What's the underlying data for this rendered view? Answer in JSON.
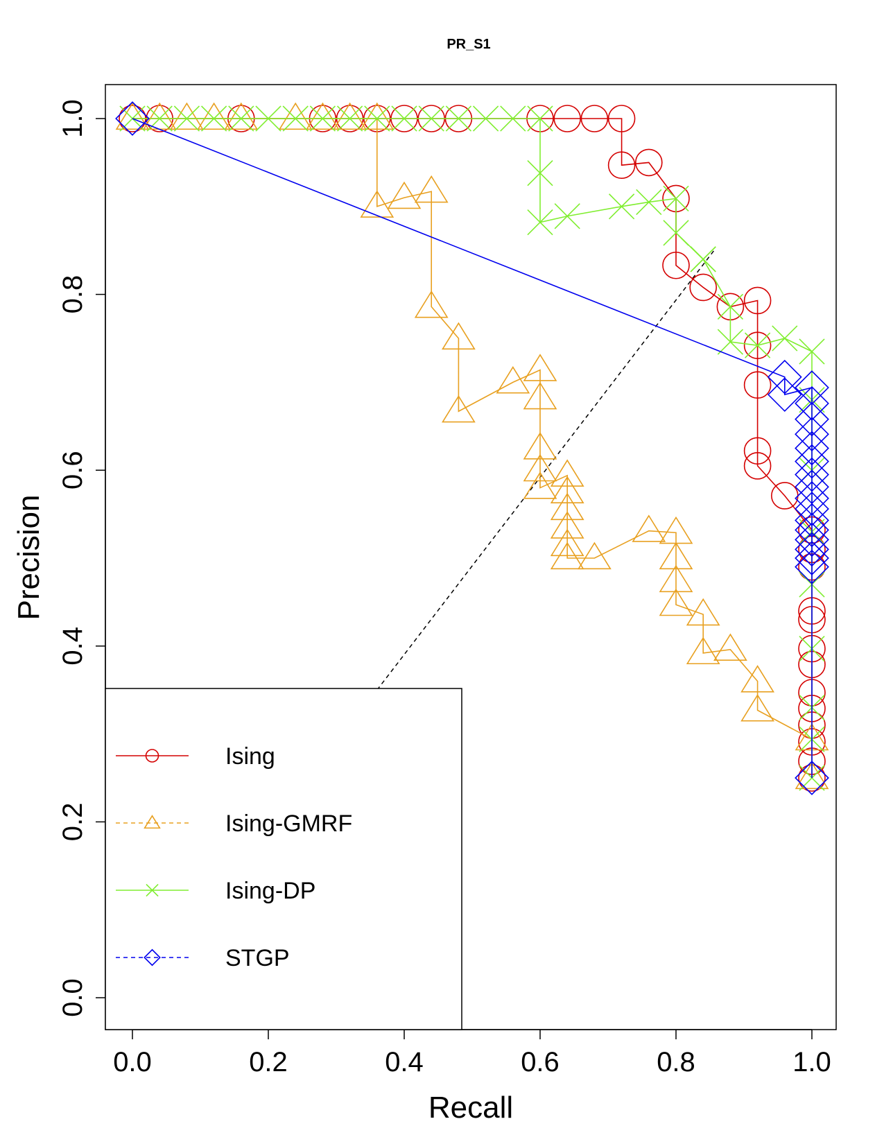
{
  "chart_data": {
    "type": "line",
    "title": "PR_S1",
    "xlabel": "Recall",
    "ylabel": "Precision",
    "xlim": [
      0,
      1
    ],
    "ylim": [
      0,
      1
    ],
    "x_ticks": [
      "0.0",
      "0.2",
      "0.4",
      "0.6",
      "0.8",
      "1.0"
    ],
    "y_ticks": [
      "0.0",
      "0.2",
      "0.4",
      "0.6",
      "0.8",
      "1.0"
    ],
    "legend_position": "bottom-left",
    "grid": false,
    "reference_line": {
      "color": "#000000",
      "style": "dashed",
      "x": [
        0.36,
        0.856
      ],
      "y": [
        0.35,
        0.85
      ]
    },
    "series": [
      {
        "name": "Ising",
        "color": "#d40000",
        "marker": "circle",
        "line_style": "solid",
        "x": [
          0,
          0.04,
          0.16,
          0.28,
          0.32,
          0.36,
          0.4,
          0.44,
          0.48,
          0.6,
          0.64,
          0.68,
          0.72,
          0.72,
          0.76,
          0.8,
          0.8,
          0.84,
          0.88,
          0.92,
          0.92,
          0.92,
          0.92,
          0.92,
          0.96,
          1.0,
          1.0,
          1.0,
          1.0,
          1.0,
          1.0,
          1.0,
          1.0,
          1.0,
          1.0,
          1.0,
          1.0,
          1.0
        ],
        "y": [
          1.0,
          1.0,
          1.0,
          1.0,
          1.0,
          1.0,
          1.0,
          1.0,
          1.0,
          1.0,
          1.0,
          1.0,
          1.0,
          0.947,
          0.95,
          0.909,
          0.833,
          0.808,
          0.786,
          0.793,
          0.742,
          0.697,
          0.622,
          0.605,
          0.571,
          0.532,
          0.51,
          0.49,
          0.44,
          0.43,
          0.397,
          0.379,
          0.347,
          0.329,
          0.31,
          0.291,
          0.269,
          0.25
        ]
      },
      {
        "name": "Ising-GMRF",
        "color": "#e8a020",
        "marker": "triangle",
        "line_style": "dashed",
        "x": [
          0,
          0.04,
          0.08,
          0.12,
          0.16,
          0.24,
          0.28,
          0.32,
          0.36,
          0.36,
          0.4,
          0.44,
          0.44,
          0.48,
          0.48,
          0.56,
          0.6,
          0.6,
          0.6,
          0.6,
          0.6,
          0.64,
          0.64,
          0.64,
          0.64,
          0.64,
          0.64,
          0.68,
          0.76,
          0.8,
          0.8,
          0.8,
          0.8,
          0.84,
          0.84,
          0.88,
          0.92,
          0.92,
          1.0,
          1.0
        ],
        "y": [
          1.0,
          1.0,
          1.0,
          1.0,
          1.0,
          1.0,
          1.0,
          1.0,
          1.0,
          0.9,
          0.91,
          0.917,
          0.786,
          0.75,
          0.667,
          0.7,
          0.714,
          0.682,
          0.625,
          0.6,
          0.58,
          0.594,
          0.575,
          0.556,
          0.535,
          0.515,
          0.5,
          0.5,
          0.531,
          0.529,
          0.5,
          0.474,
          0.447,
          0.436,
          0.392,
          0.396,
          0.36,
          0.327,
          0.294,
          0.25
        ]
      },
      {
        "name": "Ising-DP",
        "color": "#80ee30",
        "marker": "x",
        "line_style": "solid",
        "x": [
          0,
          0.04,
          0.08,
          0.12,
          0.16,
          0.2,
          0.24,
          0.28,
          0.32,
          0.36,
          0.4,
          0.44,
          0.48,
          0.52,
          0.56,
          0.6,
          0.6,
          0.6,
          0.64,
          0.72,
          0.76,
          0.8,
          0.8,
          0.84,
          0.84,
          0.88,
          0.88,
          0.92,
          0.96,
          1.0,
          1.0,
          1.0,
          1.0,
          1.0,
          1.0,
          1.0,
          1.0,
          1.0
        ],
        "y": [
          1.0,
          1.0,
          1.0,
          1.0,
          1.0,
          1.0,
          1.0,
          1.0,
          1.0,
          1.0,
          1.0,
          1.0,
          1.0,
          1.0,
          1.0,
          1.0,
          0.938,
          0.882,
          0.889,
          0.9,
          0.905,
          0.909,
          0.87,
          0.84,
          0.84,
          0.786,
          0.746,
          0.742,
          0.75,
          0.735,
          0.68,
          0.6,
          0.53,
          0.47,
          0.397,
          0.33,
          0.294,
          0.25
        ]
      },
      {
        "name": "STGP",
        "color": "#0000ee",
        "marker": "diamond",
        "line_style": "dashed",
        "x": [
          0,
          0.96,
          0.96,
          1.0,
          1.0,
          1.0,
          1.0,
          1.0,
          1.0,
          1.0,
          1.0,
          1.0,
          1.0,
          1.0,
          1.0,
          1.0,
          1.0,
          1.0,
          1.0,
          1.0
        ],
        "y": [
          1.0,
          0.706,
          0.686,
          0.694,
          0.676,
          0.658,
          0.641,
          0.625,
          0.61,
          0.595,
          0.581,
          0.568,
          0.556,
          0.543,
          0.532,
          0.521,
          0.51,
          0.5,
          0.49,
          0.25
        ]
      }
    ]
  }
}
